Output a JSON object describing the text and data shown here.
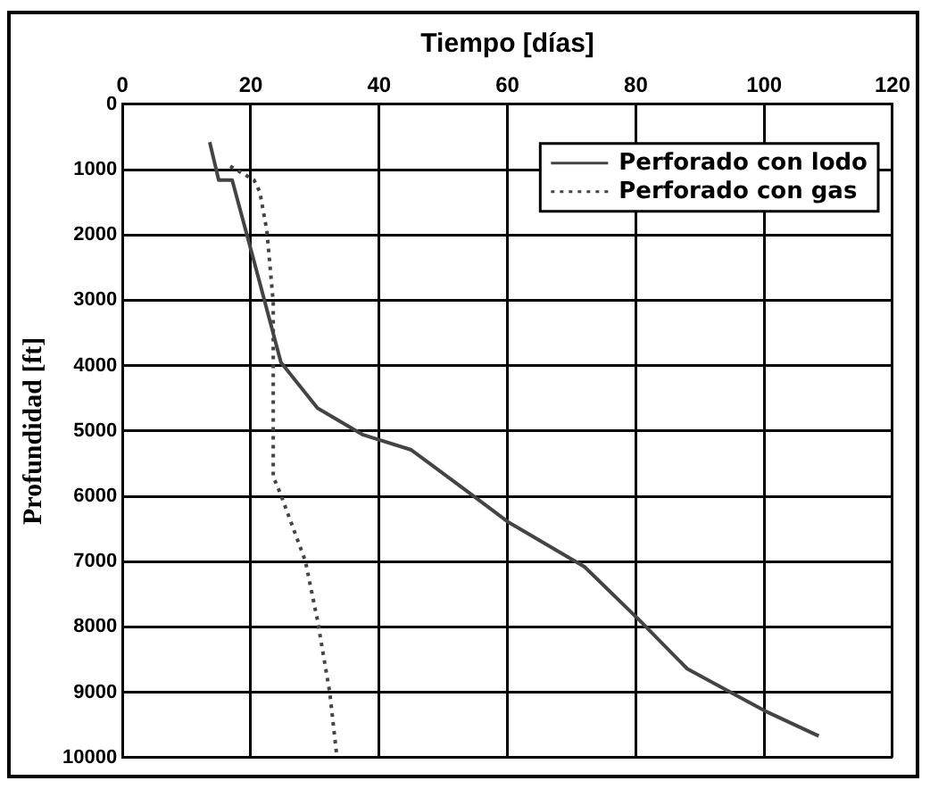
{
  "chart_data": {
    "type": "line",
    "xlabel": "Tiempo [días]",
    "ylabel": "Profundidad [ft]",
    "xlim": [
      0,
      120
    ],
    "xticks": [
      0,
      20,
      40,
      60,
      80,
      100,
      120
    ],
    "ylim": [
      10000,
      0
    ],
    "yticks": [
      0,
      1000,
      2000,
      3000,
      4000,
      5000,
      6000,
      7000,
      8000,
      9000,
      10000
    ],
    "grid": true,
    "legend": "top right",
    "series": [
      {
        "name": "Perforado con lodo",
        "color": "#444444",
        "line_style": "solid",
        "x": [
          13.6,
          15,
          17.1,
          20.5,
          24.7,
          30.4,
          37.5,
          45,
          54.5,
          60.2,
          72,
          80.6,
          88,
          100,
          108.5
        ],
        "values": [
          580,
          1160,
          1160,
          2400,
          3950,
          4650,
          5060,
          5290,
          5980,
          6400,
          7080,
          7900,
          8640,
          9280,
          9670
        ]
      },
      {
        "name": "Perforado con gas",
        "color": "#444444",
        "line_style": "dotted",
        "x": [
          16.8,
          20.5,
          21.4,
          22.5,
          23.5,
          23.5,
          24.7,
          28.5,
          30.4,
          32.3,
          33.4
        ],
        "values": [
          950,
          1160,
          1340,
          1930,
          3030,
          5700,
          5980,
          6990,
          7900,
          9000,
          9970
        ]
      }
    ]
  }
}
